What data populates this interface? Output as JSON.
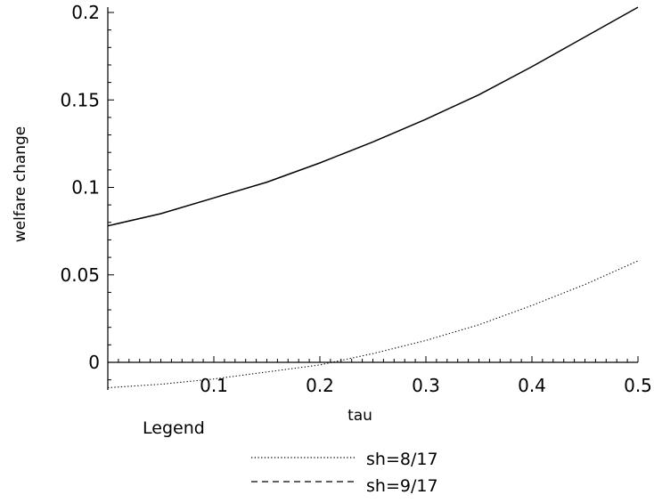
{
  "chart_data": {
    "type": "line",
    "xlabel": "tau",
    "ylabel": "welfare change",
    "xlim": [
      0,
      0.5
    ],
    "ylim": [
      -0.015,
      0.205
    ],
    "x_ticks": [
      0.1,
      0.2,
      0.3,
      0.4,
      0.5
    ],
    "x_tick_labels": [
      "0.1",
      "0.2",
      "0.3",
      "0.4",
      "0.5"
    ],
    "y_ticks": [
      0,
      0.05,
      0.1,
      0.15,
      0.2
    ],
    "y_tick_labels": [
      "0",
      "0.05",
      "0.1",
      "0.15",
      "0.2"
    ],
    "grid": false,
    "legend_title": "Legend",
    "legend_position": "bottom-center",
    "colors": {
      "line": "#000000",
      "background": "#ffffff"
    },
    "x": [
      0,
      0.05,
      0.1,
      0.15,
      0.2,
      0.25,
      0.3,
      0.35,
      0.4,
      0.45,
      0.5
    ],
    "series": [
      {
        "name": "sh=8/17",
        "style": "dotted",
        "values": [
          -0.0145,
          -0.0125,
          -0.0095,
          -0.0055,
          -0.0015,
          0.005,
          0.0125,
          0.0215,
          0.0325,
          0.0445,
          0.058
        ]
      },
      {
        "name": "sh=9/17",
        "style": "dashed",
        "values": [
          0.078,
          0.085,
          0.094,
          0.103,
          0.114,
          0.126,
          0.139,
          0.153,
          0.169,
          0.186,
          0.203
        ]
      }
    ]
  }
}
